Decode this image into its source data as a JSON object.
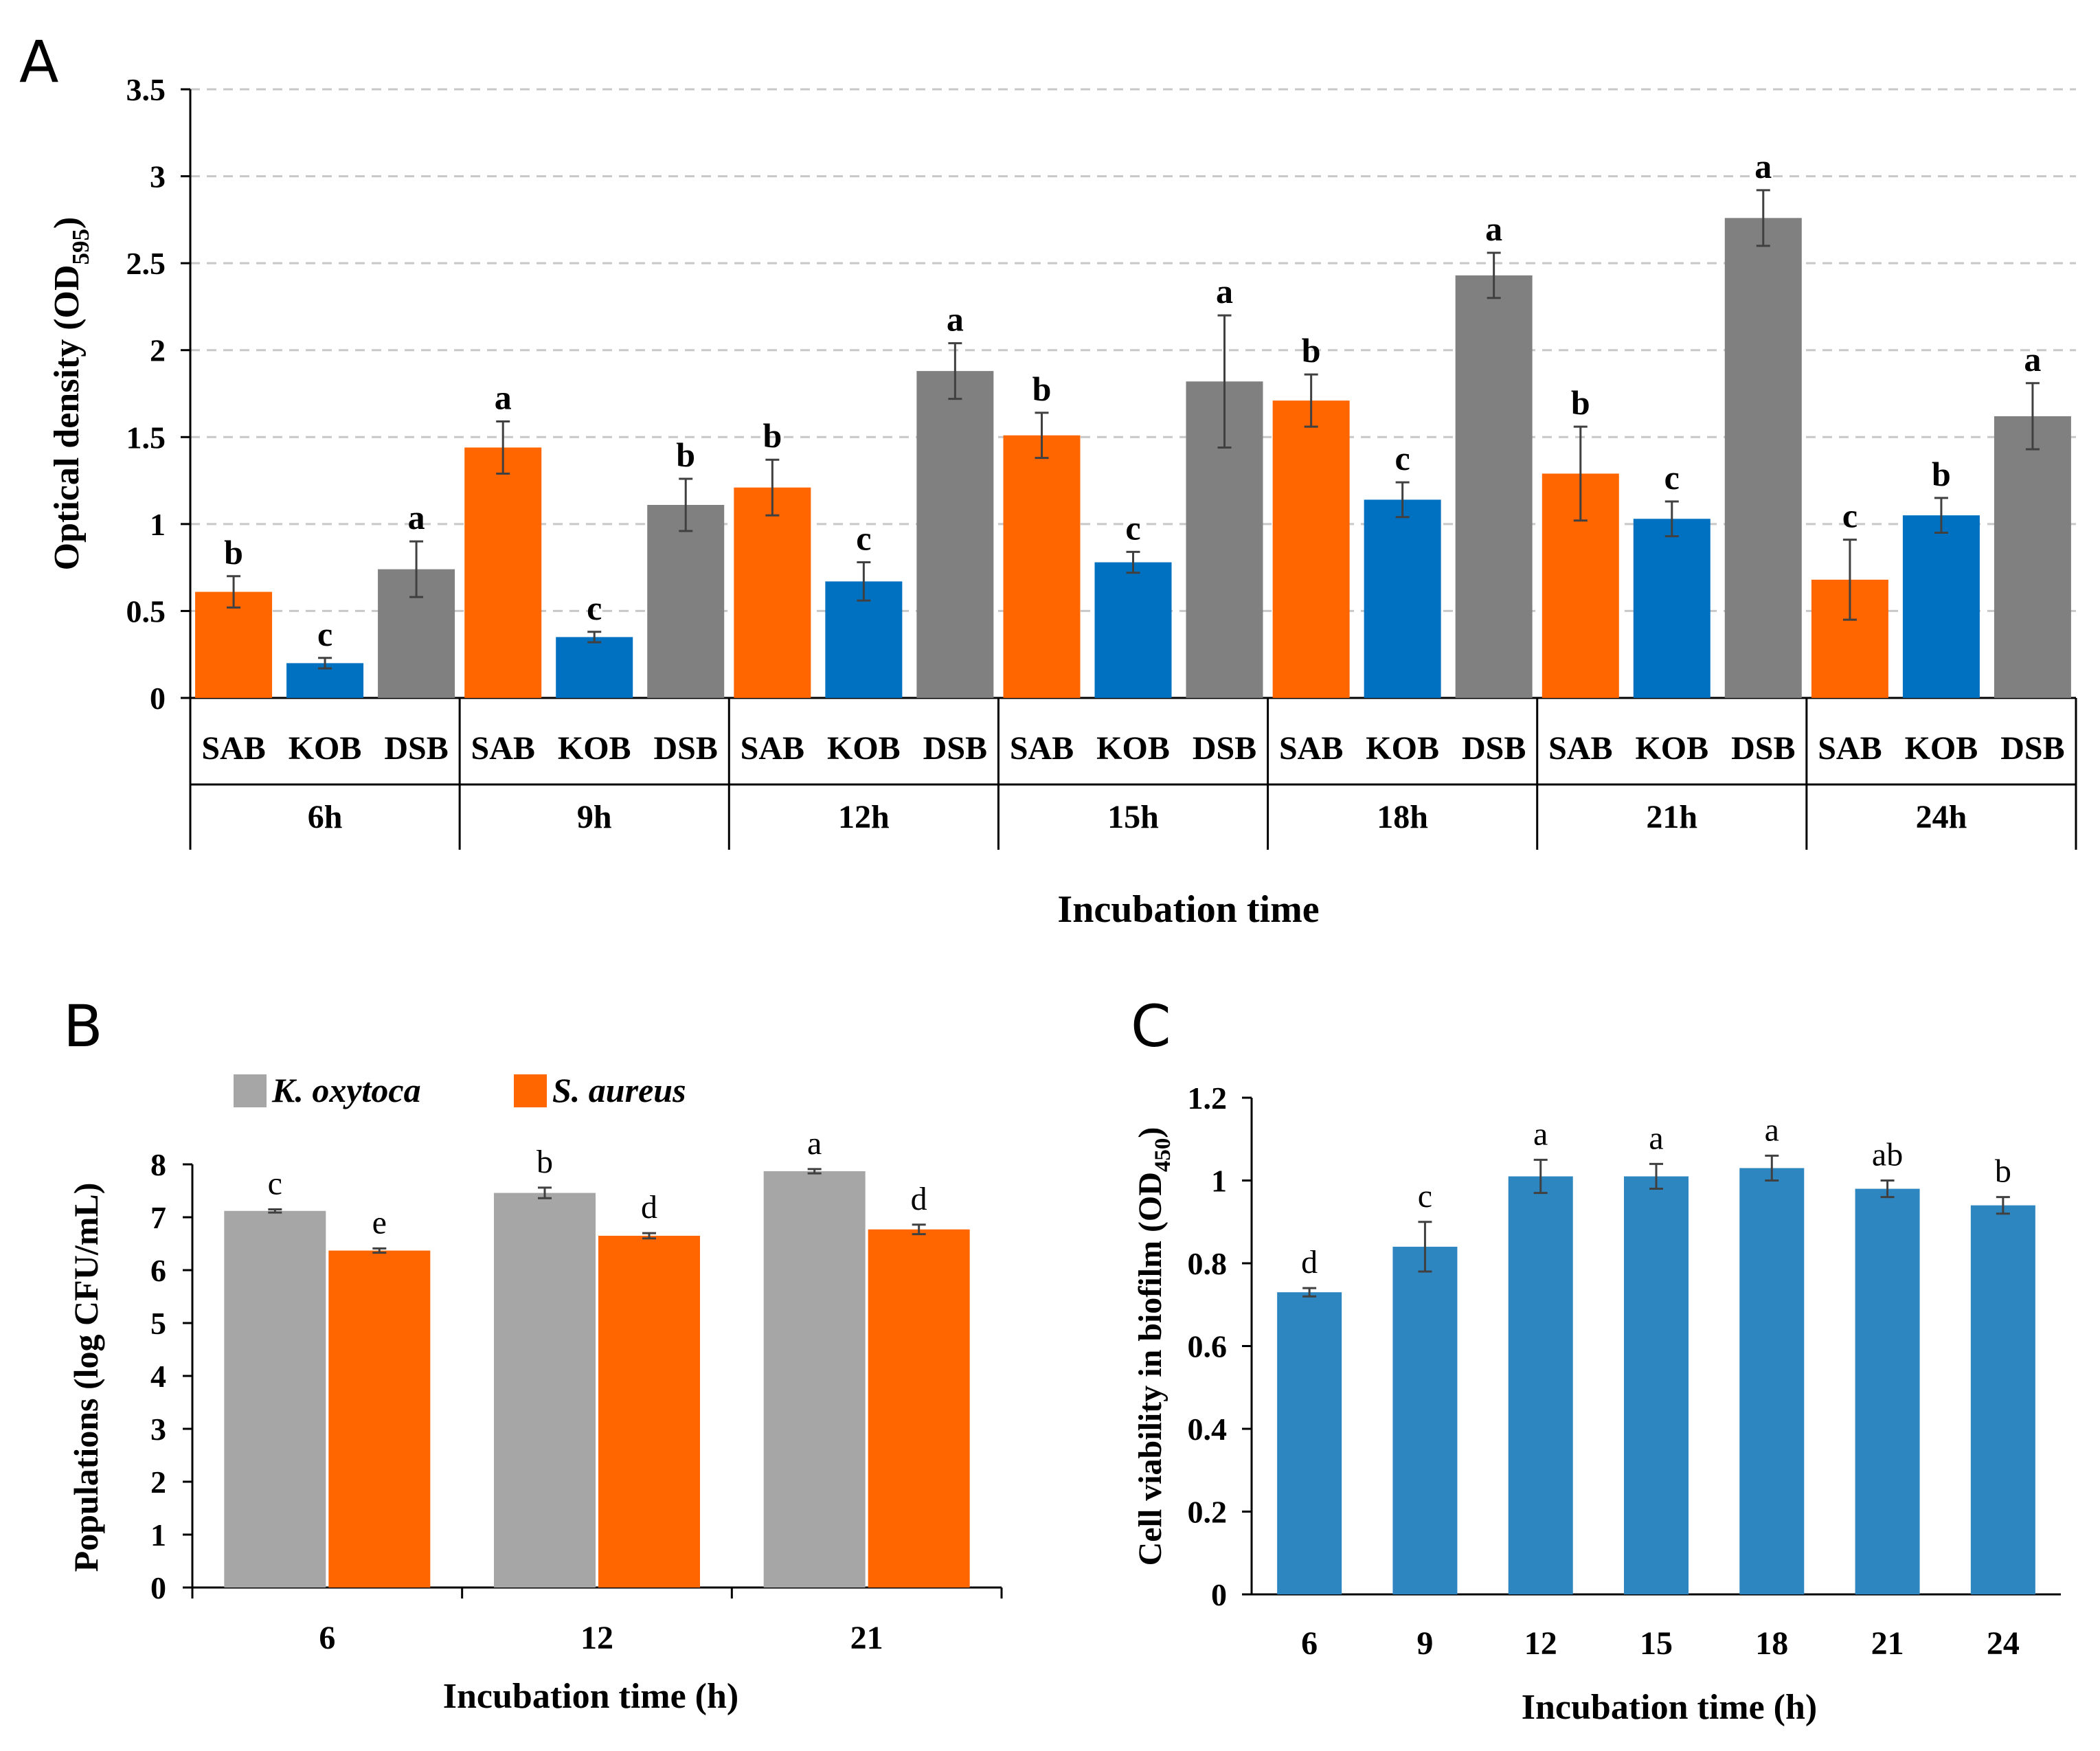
{
  "figure": {
    "panel_labels": [
      "A",
      "B",
      "C"
    ]
  },
  "chart_data": [
    {
      "panel": "A",
      "type": "bar",
      "ylabel_main": "Optical density (OD",
      "ylabel_sub": "595",
      "ylabel_end": ")",
      "xlabel": "Incubation time",
      "ylim": [
        0,
        3.5
      ],
      "yticks": [
        "0",
        "0.5",
        "1",
        "1.5",
        "2",
        "2.5",
        "3",
        "3.5"
      ],
      "groups": [
        "6h",
        "9h",
        "12h",
        "15h",
        "18h",
        "21h",
        "24h"
      ],
      "series": [
        {
          "name": "SAB",
          "color": "#FF6600",
          "values": [
            0.61,
            1.44,
            1.21,
            1.51,
            1.71,
            1.29,
            0.68
          ],
          "errors": [
            0.09,
            0.15,
            0.16,
            0.13,
            0.15,
            0.27,
            0.23
          ],
          "letters": [
            "b",
            "a",
            "b",
            "b",
            "b",
            "b",
            "c"
          ]
        },
        {
          "name": "KOB",
          "color": "#0070C0",
          "values": [
            0.2,
            0.35,
            0.67,
            0.78,
            1.14,
            1.03,
            1.05
          ],
          "errors": [
            0.03,
            0.03,
            0.11,
            0.06,
            0.1,
            0.1,
            0.1
          ],
          "letters": [
            "c",
            "c",
            "c",
            "c",
            "c",
            "c",
            "b"
          ]
        },
        {
          "name": "DSB",
          "color": "#808080",
          "values": [
            0.74,
            1.11,
            1.88,
            1.82,
            2.43,
            2.76,
            1.62
          ],
          "errors": [
            0.16,
            0.15,
            0.16,
            0.38,
            0.13,
            0.16,
            0.19
          ],
          "letters": [
            "a",
            "b",
            "a",
            "a",
            "a",
            "a",
            "a"
          ]
        }
      ]
    },
    {
      "panel": "B",
      "type": "bar",
      "ylabel": "Populations (log CFU/mL)",
      "xlabel": "Incubation time (h)",
      "ylim": [
        0,
        8
      ],
      "yticks": [
        "0",
        "1",
        "2",
        "3",
        "4",
        "5",
        "6",
        "7",
        "8"
      ],
      "categories": [
        "6",
        "12",
        "21"
      ],
      "legend_position": "top-left",
      "series": [
        {
          "name": "K. oxytoca",
          "color": "#A6A6A6",
          "values": [
            7.12,
            7.46,
            7.87
          ],
          "errors": [
            0.03,
            0.1,
            0.04
          ],
          "letters": [
            "c",
            "b",
            "a"
          ]
        },
        {
          "name": "S. aureus",
          "color": "#FF6600",
          "values": [
            6.37,
            6.65,
            6.77
          ],
          "errors": [
            0.04,
            0.05,
            0.09
          ],
          "letters": [
            "e",
            "d",
            "d"
          ]
        }
      ]
    },
    {
      "panel": "C",
      "type": "bar",
      "ylabel_main": "Cell viability in biofilm (OD",
      "ylabel_sub": "450",
      "ylabel_end": ")",
      "xlabel": "Incubation time (h)",
      "ylim": [
        0,
        1.2
      ],
      "yticks": [
        "0",
        "0.2",
        "0.4",
        "0.6",
        "0.8",
        "1",
        "1.2"
      ],
      "categories": [
        "6",
        "9",
        "12",
        "15",
        "18",
        "21",
        "24"
      ],
      "series": [
        {
          "name": "viability",
          "color": "#2E86C1",
          "values": [
            0.73,
            0.84,
            1.01,
            1.01,
            1.03,
            0.98,
            0.94
          ],
          "errors": [
            0.01,
            0.06,
            0.04,
            0.03,
            0.03,
            0.02,
            0.02
          ],
          "letters": [
            "d",
            "c",
            "a",
            "a",
            "a",
            "ab",
            "b"
          ]
        }
      ]
    }
  ]
}
